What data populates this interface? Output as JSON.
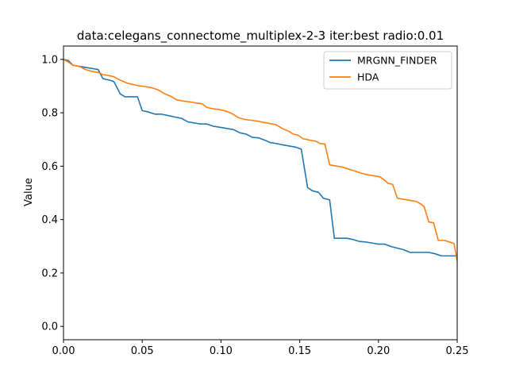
{
  "chart_data": {
    "type": "line",
    "title": "data:celegans_connectome_multiplex-2-3 iter:best radio:0.01",
    "xlabel": "",
    "ylabel": "Value",
    "xlim": [
      0,
      0.25
    ],
    "ylim": [
      -0.05,
      1.05
    ],
    "x_ticks": [
      "0.00",
      "0.05",
      "0.10",
      "0.15",
      "0.20",
      "0.25"
    ],
    "y_ticks": [
      "0.0",
      "0.2",
      "0.4",
      "0.6",
      "0.8",
      "1.0"
    ],
    "grid": false,
    "legend_position": "top-right",
    "series": [
      {
        "name": "MRGNN_FINDER",
        "color": "#1f77b4",
        "points": [
          [
            0.0,
            1.0
          ],
          [
            0.003,
            0.996
          ],
          [
            0.006,
            0.978
          ],
          [
            0.01,
            0.974
          ],
          [
            0.014,
            0.97
          ],
          [
            0.018,
            0.966
          ],
          [
            0.022,
            0.962
          ],
          [
            0.025,
            0.928
          ],
          [
            0.03,
            0.921
          ],
          [
            0.032,
            0.917
          ],
          [
            0.036,
            0.871
          ],
          [
            0.039,
            0.86
          ],
          [
            0.043,
            0.86
          ],
          [
            0.047,
            0.86
          ],
          [
            0.05,
            0.808
          ],
          [
            0.054,
            0.803
          ],
          [
            0.058,
            0.795
          ],
          [
            0.062,
            0.795
          ],
          [
            0.066,
            0.79
          ],
          [
            0.07,
            0.785
          ],
          [
            0.075,
            0.779
          ],
          [
            0.079,
            0.766
          ],
          [
            0.083,
            0.762
          ],
          [
            0.087,
            0.758
          ],
          [
            0.091,
            0.758
          ],
          [
            0.095,
            0.75
          ],
          [
            0.1,
            0.745
          ],
          [
            0.104,
            0.741
          ],
          [
            0.108,
            0.737
          ],
          [
            0.112,
            0.725
          ],
          [
            0.116,
            0.72
          ],
          [
            0.12,
            0.708
          ],
          [
            0.124,
            0.706
          ],
          [
            0.128,
            0.697
          ],
          [
            0.131,
            0.689
          ],
          [
            0.135,
            0.685
          ],
          [
            0.139,
            0.68
          ],
          [
            0.143,
            0.676
          ],
          [
            0.147,
            0.672
          ],
          [
            0.151,
            0.664
          ],
          [
            0.155,
            0.52
          ],
          [
            0.158,
            0.508
          ],
          [
            0.162,
            0.502
          ],
          [
            0.165,
            0.48
          ],
          [
            0.169,
            0.474
          ],
          [
            0.172,
            0.33
          ],
          [
            0.176,
            0.33
          ],
          [
            0.18,
            0.33
          ],
          [
            0.184,
            0.325
          ],
          [
            0.188,
            0.318
          ],
          [
            0.192,
            0.316
          ],
          [
            0.196,
            0.312
          ],
          [
            0.2,
            0.308
          ],
          [
            0.204,
            0.308
          ],
          [
            0.208,
            0.299
          ],
          [
            0.212,
            0.293
          ],
          [
            0.216,
            0.287
          ],
          [
            0.22,
            0.277
          ],
          [
            0.224,
            0.277
          ],
          [
            0.228,
            0.277
          ],
          [
            0.232,
            0.277
          ],
          [
            0.236,
            0.272
          ],
          [
            0.24,
            0.264
          ],
          [
            0.244,
            0.264
          ],
          [
            0.248,
            0.264
          ],
          [
            0.25,
            0.264
          ]
        ]
      },
      {
        "name": "HDA",
        "color": "#ff7f0e",
        "points": [
          [
            0.0,
            1.0
          ],
          [
            0.003,
            0.99
          ],
          [
            0.006,
            0.978
          ],
          [
            0.01,
            0.974
          ],
          [
            0.014,
            0.962
          ],
          [
            0.018,
            0.955
          ],
          [
            0.022,
            0.951
          ],
          [
            0.025,
            0.943
          ],
          [
            0.029,
            0.939
          ],
          [
            0.032,
            0.935
          ],
          [
            0.036,
            0.922
          ],
          [
            0.04,
            0.912
          ],
          [
            0.044,
            0.906
          ],
          [
            0.048,
            0.901
          ],
          [
            0.052,
            0.898
          ],
          [
            0.056,
            0.894
          ],
          [
            0.06,
            0.886
          ],
          [
            0.064,
            0.872
          ],
          [
            0.068,
            0.862
          ],
          [
            0.072,
            0.848
          ],
          [
            0.076,
            0.844
          ],
          [
            0.08,
            0.841
          ],
          [
            0.084,
            0.837
          ],
          [
            0.088,
            0.834
          ],
          [
            0.091,
            0.82
          ],
          [
            0.095,
            0.815
          ],
          [
            0.099,
            0.812
          ],
          [
            0.103,
            0.807
          ],
          [
            0.107,
            0.797
          ],
          [
            0.111,
            0.782
          ],
          [
            0.115,
            0.775
          ],
          [
            0.119,
            0.772
          ],
          [
            0.123,
            0.769
          ],
          [
            0.127,
            0.764
          ],
          [
            0.131,
            0.76
          ],
          [
            0.135,
            0.755
          ],
          [
            0.139,
            0.741
          ],
          [
            0.143,
            0.731
          ],
          [
            0.146,
            0.72
          ],
          [
            0.149,
            0.716
          ],
          [
            0.152,
            0.703
          ],
          [
            0.156,
            0.698
          ],
          [
            0.16,
            0.694
          ],
          [
            0.163,
            0.685
          ],
          [
            0.166,
            0.683
          ],
          [
            0.169,
            0.605
          ],
          [
            0.173,
            0.601
          ],
          [
            0.177,
            0.597
          ],
          [
            0.181,
            0.589
          ],
          [
            0.185,
            0.582
          ],
          [
            0.189,
            0.574
          ],
          [
            0.193,
            0.568
          ],
          [
            0.197,
            0.564
          ],
          [
            0.201,
            0.56
          ],
          [
            0.204,
            0.547
          ],
          [
            0.206,
            0.536
          ],
          [
            0.209,
            0.532
          ],
          [
            0.212,
            0.48
          ],
          [
            0.216,
            0.476
          ],
          [
            0.22,
            0.472
          ],
          [
            0.224,
            0.468
          ],
          [
            0.227,
            0.458
          ],
          [
            0.229,
            0.448
          ],
          [
            0.232,
            0.391
          ],
          [
            0.235,
            0.388
          ],
          [
            0.238,
            0.322
          ],
          [
            0.242,
            0.322
          ],
          [
            0.246,
            0.314
          ],
          [
            0.248,
            0.31
          ],
          [
            0.25,
            0.245
          ]
        ]
      }
    ]
  }
}
